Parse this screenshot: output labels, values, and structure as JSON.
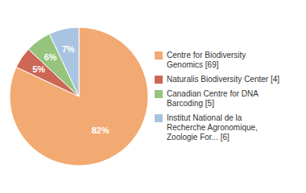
{
  "chart_data": {
    "type": "pie",
    "categories": [
      "Centre for Biodiversity\nGenomics [69]",
      "Naturalis Biodiversity Center [4]",
      "Canadian Centre for DNA\nBarcoding [5]",
      "Institut National de la\nRecherche Agronomique,\nZoologie For... [6]"
    ],
    "values": [
      82,
      5,
      6,
      7
    ],
    "value_labels": [
      "82%",
      "5%",
      "6%",
      "7%"
    ],
    "colors": [
      "#f2aa72",
      "#cc6655",
      "#96c47c",
      "#a8c4e0"
    ],
    "data_labels": true,
    "legend": "right"
  }
}
